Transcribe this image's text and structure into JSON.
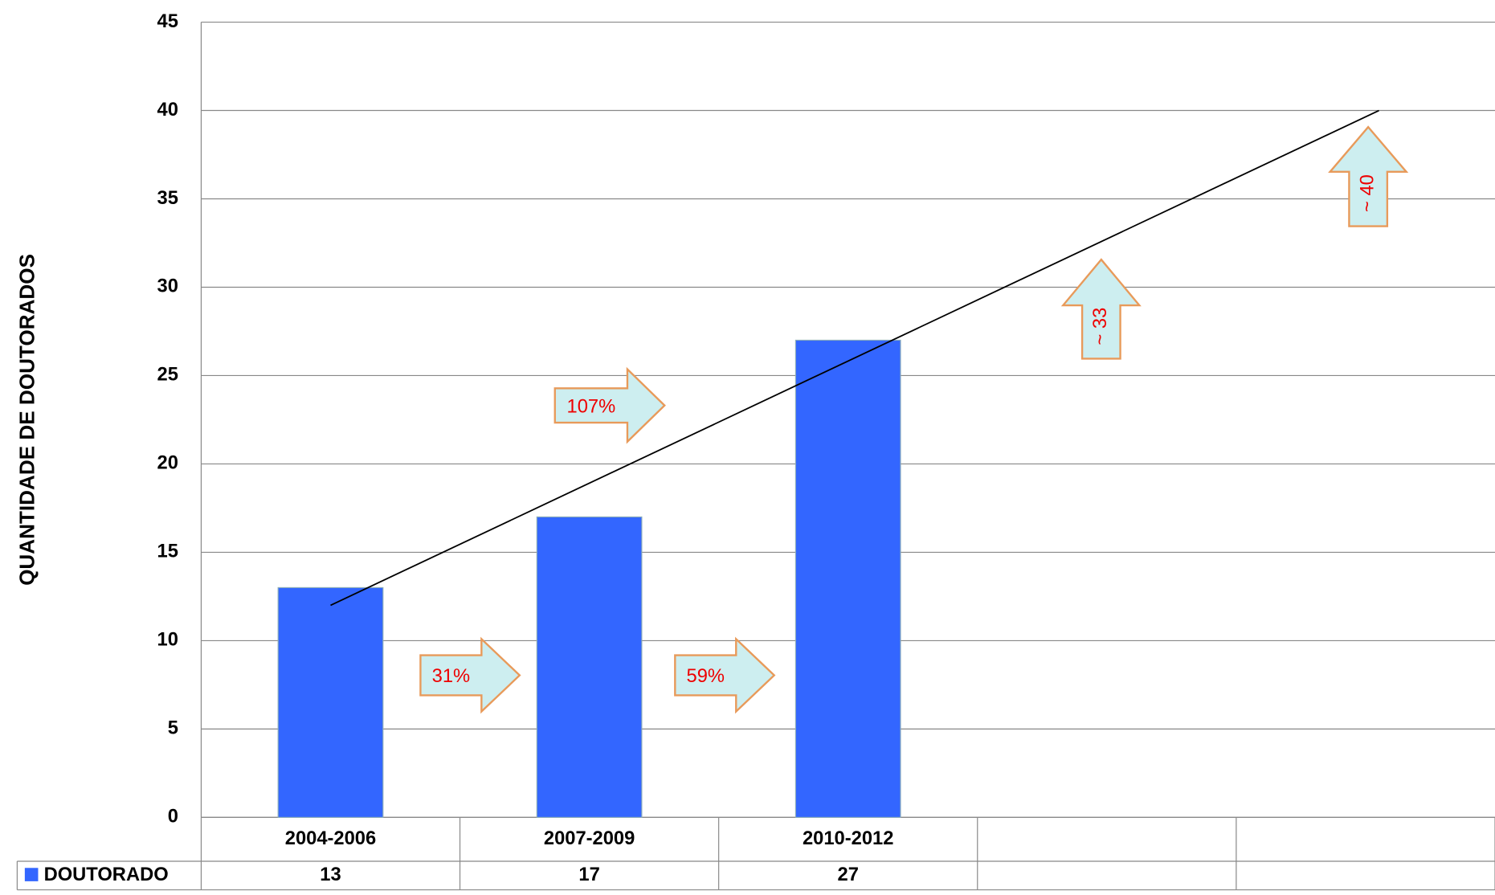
{
  "chart_data": {
    "type": "bar",
    "y_label": "QUANTIDADE DE DOUTORADOS",
    "categories": [
      "2004-2006",
      "2007-2009",
      "2010-2012",
      null,
      null
    ],
    "series": [
      {
        "name": "DOUTORADO",
        "color": "#3366ff",
        "values": [
          13,
          17,
          27,
          null,
          null
        ]
      }
    ],
    "ylim": [
      0,
      45
    ],
    "yticks": [
      0,
      5,
      10,
      15,
      20,
      25,
      30,
      35,
      40,
      45
    ],
    "grid": true,
    "trendline": {
      "start": 12,
      "end": 40,
      "color": "#000000"
    },
    "annotations": [
      {
        "text": "31%"
      },
      {
        "text": "59%"
      },
      {
        "text": "107%"
      },
      {
        "text": "~ 33"
      },
      {
        "text": "~ 40"
      }
    ]
  }
}
